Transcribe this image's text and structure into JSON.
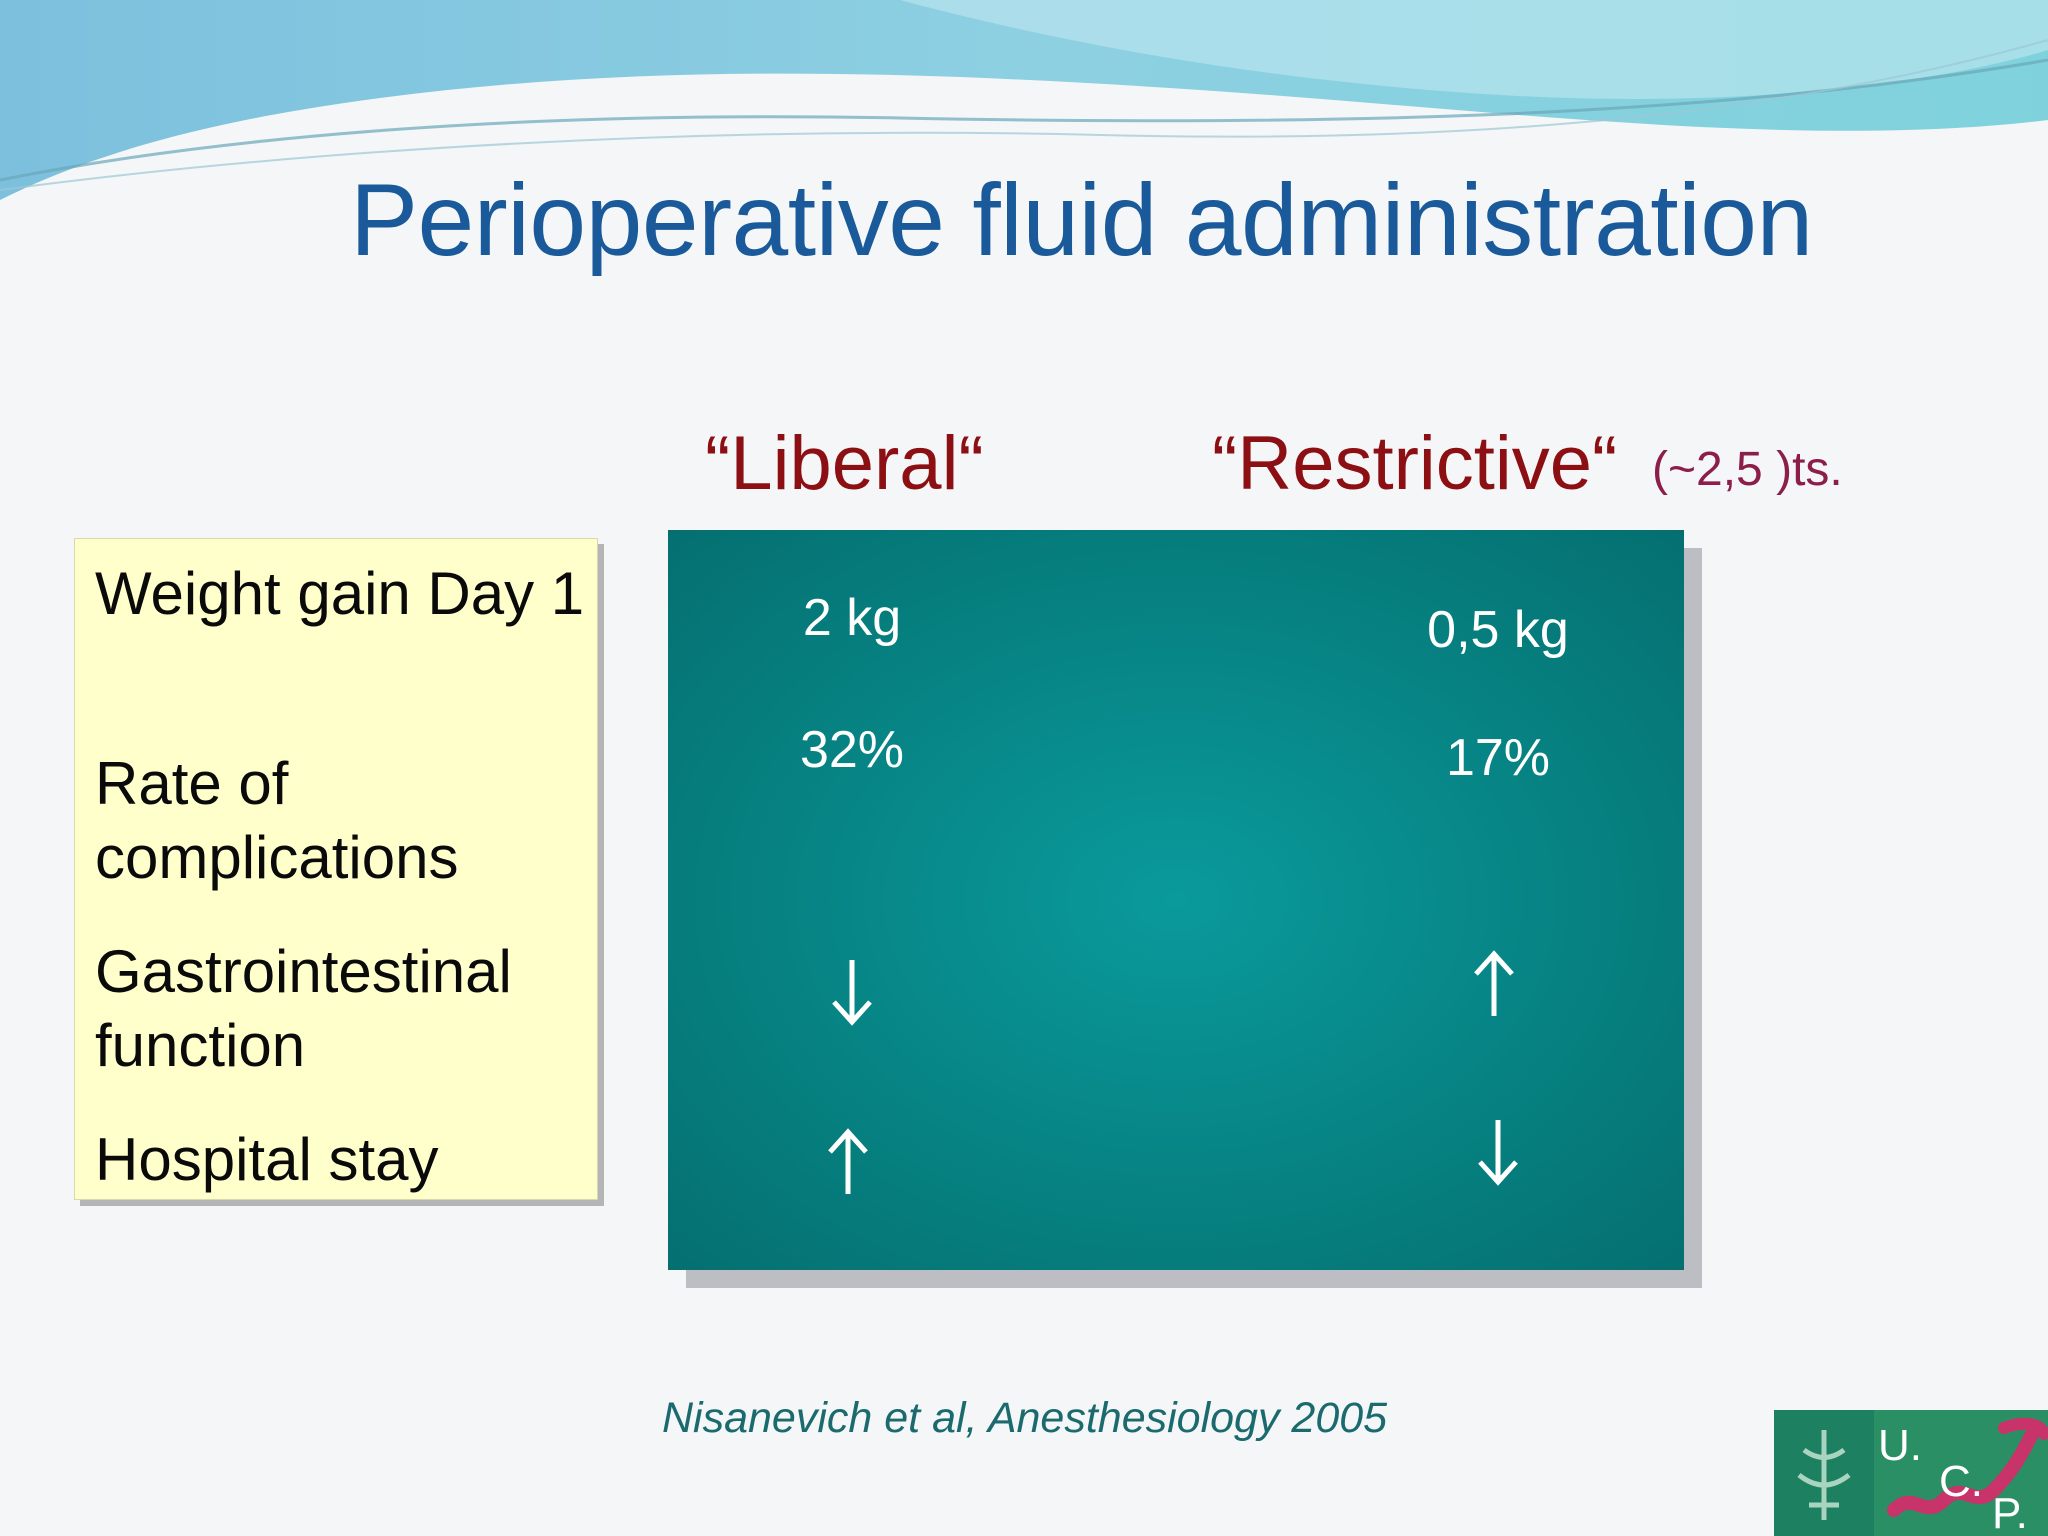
{
  "slide": {
    "title": "Perioperative fluid administration",
    "column_headers": {
      "liberal": "“Liberal“",
      "restrictive": "“Restrictive“",
      "restrictive_note": "(~2,5 )ts."
    },
    "rows": [
      {
        "label": "Weight gain   Day 1",
        "liberal": "2 kg",
        "restrictive": "0,5 kg"
      },
      {
        "label": "Rate of complications",
        "liberal": "32%",
        "restrictive": "17%"
      },
      {
        "label": "Gastrointestinal function",
        "liberal": "↓",
        "restrictive": "↑"
      },
      {
        "label": "Hospital stay",
        "liberal": "↑",
        "restrictive": "↓"
      }
    ],
    "citation": "Nisanevich et al, Anesthesiology 2005",
    "logo": {
      "letters": [
        "U.",
        "C.",
        "P."
      ]
    },
    "colors": {
      "title": "#1a5a9a",
      "column_header": "#8c0f14",
      "label_box": "#ffffcc",
      "results_box": "#088b8c",
      "citation": "#1a6a6e"
    }
  }
}
